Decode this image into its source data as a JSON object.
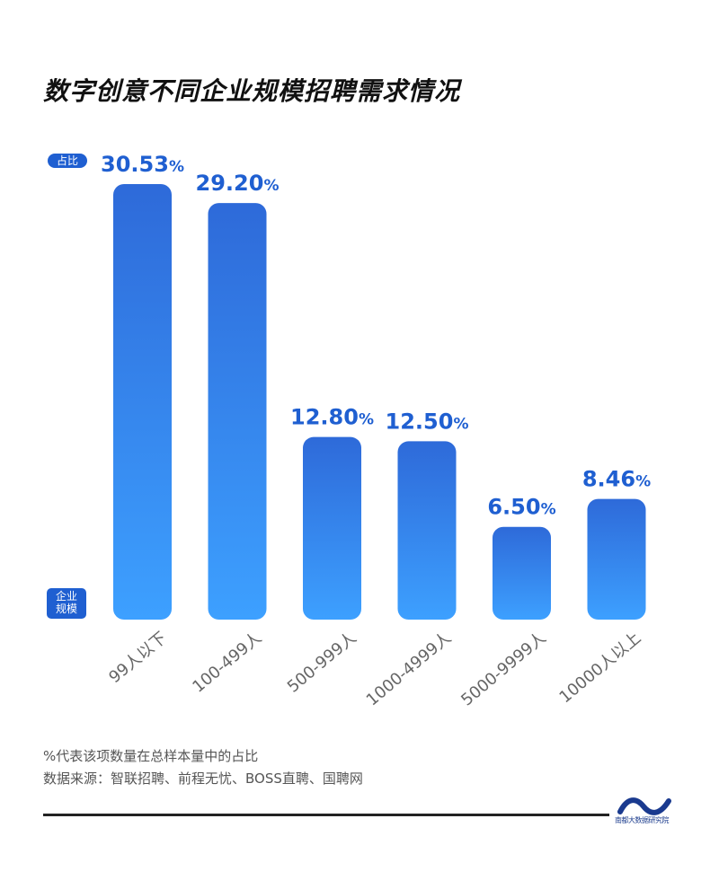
{
  "title": "数字创意不同企业规模招聘需求情况",
  "y_axis_tag": "占比",
  "x_axis_tag_line1": "企业",
  "x_axis_tag_line2": "规模",
  "colors": {
    "bar_top": "#2e6ad9",
    "bar_bottom": "#3da0ff",
    "label": "#1f5fd1"
  },
  "chart_data": {
    "type": "bar",
    "categories": [
      "99人以下",
      "100-499人",
      "500-999人",
      "1000-4999人",
      "5000-9999人",
      "10000人以上"
    ],
    "values": [
      30.53,
      29.2,
      12.8,
      12.5,
      6.5,
      8.46
    ],
    "value_labels": [
      "30.53",
      "29.20",
      "12.80",
      "12.50",
      "6.50",
      "8.46"
    ],
    "unit": "%",
    "ylim": [
      0,
      30.53
    ],
    "grid": false
  },
  "footnotes": [
    "%代表该项数量在总样本量中的占比",
    "数据来源：智联招聘、前程无忧、BOSS直聘、国聘网"
  ],
  "logo": {
    "icon": "wave-logo-icon",
    "text": "南都大数据研究院"
  }
}
